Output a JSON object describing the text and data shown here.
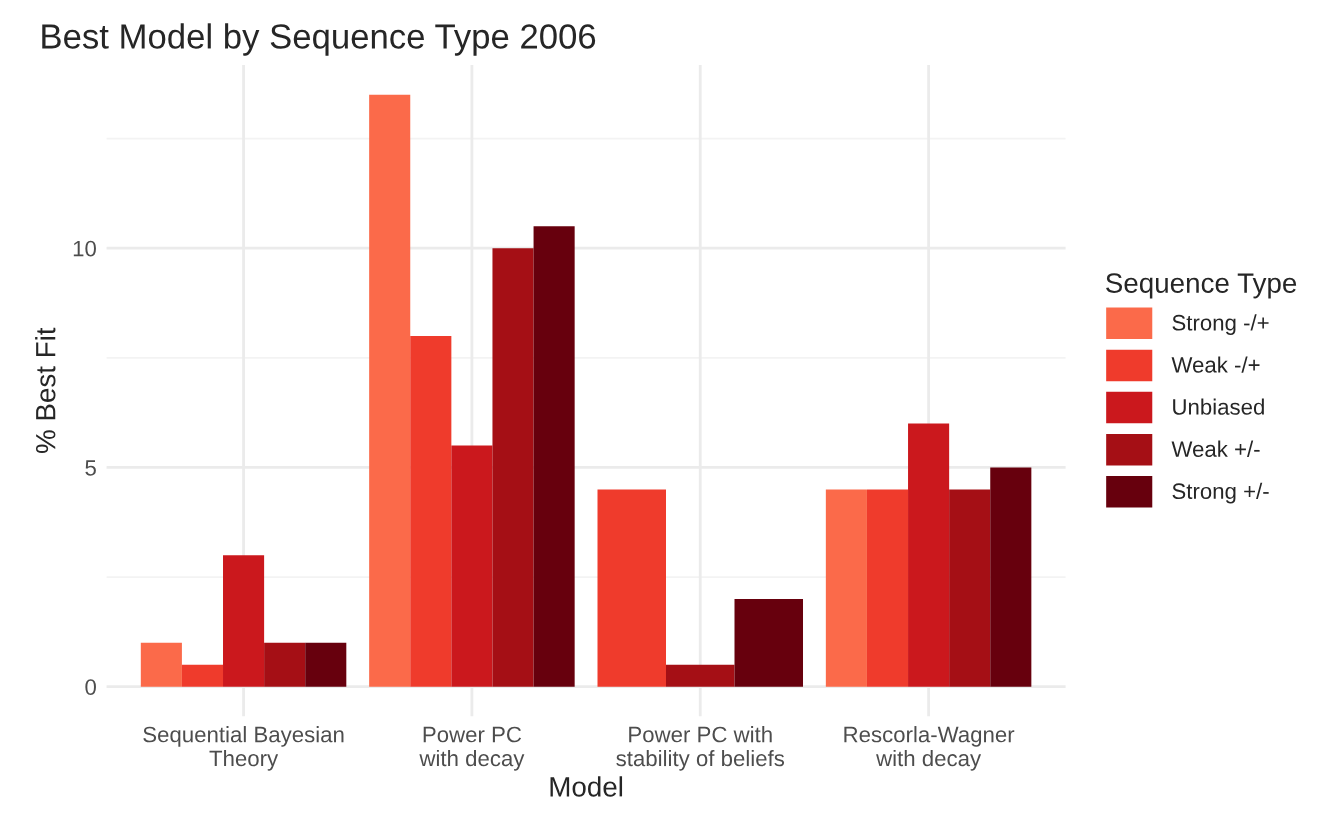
{
  "chart_data": {
    "type": "bar",
    "title": "Best Model by Sequence Type 2006",
    "xlabel": "Model",
    "ylabel": "% Best Fit",
    "legend_title": "Sequence Type",
    "categories": [
      "Sequential Bayesian\nTheory",
      "Power PC\nwith decay",
      "Power PC with\nstability of beliefs",
      "Rescorla-Wagner\nwith decay"
    ],
    "series": [
      {
        "name": "Strong -/+",
        "color": "#fb6a4a",
        "values": [
          1,
          13.5,
          null,
          4.5
        ]
      },
      {
        "name": "Weak -/+",
        "color": "#ef3b2c",
        "values": [
          0.5,
          8,
          4.5,
          4.5
        ]
      },
      {
        "name": "Unbiased",
        "color": "#cb181d",
        "values": [
          3,
          5.5,
          null,
          6
        ]
      },
      {
        "name": "Weak +/-",
        "color": "#a50f15",
        "values": [
          1,
          10,
          0.5,
          4.5
        ]
      },
      {
        "name": "Strong +/-",
        "color": "#67000d",
        "values": [
          1,
          10.5,
          2,
          5
        ]
      }
    ],
    "ylim": [
      -0.675,
      14.175
    ],
    "yticks": [
      0,
      5,
      10
    ],
    "grid": true,
    "legend": "right"
  }
}
